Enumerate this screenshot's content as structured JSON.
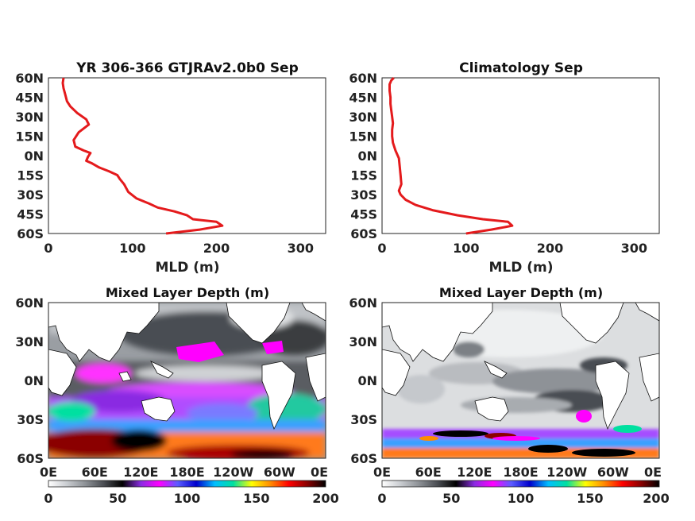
{
  "colors": {
    "profile_line": "#e41a1c",
    "axis": "#222222",
    "land": "#ffffff",
    "colormap": [
      "#ffffff",
      "#c9ccd0",
      "#8d9196",
      "#4a4d52",
      "#000000",
      "#8a2be2",
      "#ff00ff",
      "#5b5bff",
      "#0000cd",
      "#00bfff",
      "#00e0a0",
      "#ffff00",
      "#ff8c00",
      "#ff0000",
      "#8b0000",
      "#000000"
    ]
  },
  "chart_data": [
    {
      "type": "line",
      "title": "YR 306-366 GTJRAv2.0b0 Sep",
      "xlabel": "MLD (m)",
      "ylabel": "",
      "xlim": [
        0,
        330
      ],
      "ylim": [
        -60,
        60
      ],
      "xticks": [
        "0",
        "100",
        "200",
        "300"
      ],
      "yticks": [
        "60N",
        "45N",
        "30N",
        "15N",
        "0N",
        "15S",
        "30S",
        "45S",
        "60S"
      ],
      "series": [
        {
          "x": [
            140,
            180,
            207,
            200,
            172,
            165,
            150,
            130,
            120,
            105,
            95,
            90,
            85,
            82,
            72,
            60,
            52,
            45,
            47,
            50,
            42,
            32,
            30,
            36,
            48,
            45,
            34,
            26,
            22,
            20,
            18,
            17,
            18
          ],
          "y": [
            -60,
            -57,
            -54,
            -51,
            -49,
            -46,
            -43,
            -40,
            -37,
            -33,
            -28,
            -22,
            -18,
            -15,
            -12,
            -9,
            -6,
            -4,
            -1,
            2,
            4,
            7,
            12,
            18,
            24,
            28,
            33,
            38,
            42,
            47,
            52,
            56,
            60
          ]
        }
      ]
    },
    {
      "type": "line",
      "title": "Climatology Sep",
      "xlabel": "MLD (m)",
      "ylabel": "",
      "xlim": [
        0,
        330
      ],
      "ylim": [
        -60,
        60
      ],
      "xticks": [
        "0",
        "100",
        "200",
        "300"
      ],
      "yticks": [
        "60N",
        "45N",
        "30N",
        "15N",
        "0N",
        "15S",
        "30S",
        "45S",
        "60S"
      ],
      "series": [
        {
          "x": [
            100,
            130,
            155,
            150,
            120,
            90,
            60,
            40,
            28,
            22,
            20,
            23,
            22,
            21,
            20,
            16,
            13,
            12,
            12,
            13,
            12,
            11,
            10,
            10,
            9,
            9,
            11,
            14
          ],
          "y": [
            -60,
            -57,
            -54,
            -51,
            -49,
            -46,
            -42,
            -38,
            -34,
            -30,
            -27,
            -22,
            -15,
            -8,
            -2,
            4,
            10,
            15,
            20,
            25,
            30,
            35,
            40,
            45,
            50,
            55,
            58,
            60
          ]
        }
      ]
    },
    {
      "type": "heatmap",
      "title": "Mixed Layer Depth (m)",
      "xticks": [
        "0E",
        "60E",
        "120E",
        "180E",
        "120W",
        "60W",
        "0E"
      ],
      "yticks": [
        "60N",
        "30N",
        "0N",
        "30S",
        "60S"
      ],
      "colorbar_ticks": [
        "0",
        "50",
        "100",
        "150",
        "200"
      ],
      "colorbar_range": [
        0,
        200
      ]
    },
    {
      "type": "heatmap",
      "title": "Mixed Layer Depth (m)",
      "xticks": [
        "0E",
        "60E",
        "120E",
        "180E",
        "120W",
        "60W",
        "0E"
      ],
      "yticks": [
        "60N",
        "30N",
        "0N",
        "30S",
        "60S"
      ],
      "colorbar_ticks": [
        "0",
        "50",
        "100",
        "150",
        "200"
      ],
      "colorbar_range": [
        0,
        200
      ]
    }
  ]
}
